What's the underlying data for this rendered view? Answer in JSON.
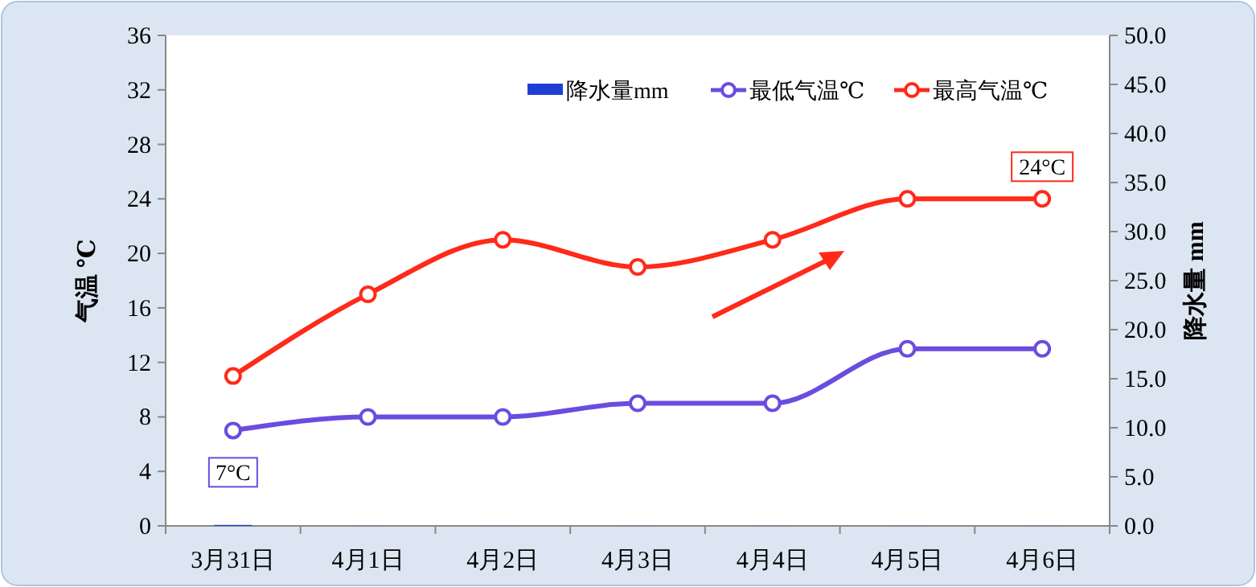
{
  "chart_data": {
    "type": "bar",
    "categories": [
      "3月31日",
      "4月1日",
      "4月2日",
      "4月3日",
      "4月4日",
      "4月5日",
      "4月6日"
    ],
    "series": [
      {
        "name": "降水量mm",
        "axis": "y2",
        "color": "#1f3fd4",
        "values": [
          0.1,
          0,
          0,
          0,
          0,
          0,
          0
        ]
      },
      {
        "name": "最低气温℃",
        "type": "line",
        "color": "#6a4ce0",
        "values": [
          7,
          8,
          8,
          9,
          9,
          13,
          13
        ]
      },
      {
        "name": "最高气温℃",
        "type": "line",
        "color": "#ff2a1a",
        "values": [
          11,
          17,
          21,
          19,
          21,
          24,
          24
        ]
      }
    ],
    "ylabel": "气温 ℃",
    "y2label": "降水量 mm",
    "ylim": [
      0,
      36
    ],
    "yticks": [
      0,
      4,
      8,
      12,
      16,
      20,
      24,
      28,
      32,
      36
    ],
    "y2lim": [
      0,
      50
    ],
    "y2ticks": [
      {
        "value": 0,
        "label": "0.0"
      },
      {
        "value": 5,
        "label": "5.0"
      },
      {
        "value": 10,
        "label": "10.0"
      },
      {
        "value": 15,
        "label": "15.0"
      },
      {
        "value": 20,
        "label": "20.0"
      },
      {
        "value": 25,
        "label": "25.0"
      },
      {
        "value": 30,
        "label": "30.0"
      },
      {
        "value": 35,
        "label": "35.0"
      },
      {
        "value": 40,
        "label": "40.0"
      },
      {
        "value": 45,
        "label": "45.0"
      },
      {
        "value": 50,
        "label": "50.0"
      }
    ],
    "annotations": [
      {
        "text": "7°C",
        "x": "3月31日",
        "y": 7
      },
      {
        "text": "24°C",
        "x": "4月6日",
        "y": 24
      }
    ],
    "legend": "top right",
    "marker": "circle",
    "line_style": "solid",
    "grid": false
  }
}
